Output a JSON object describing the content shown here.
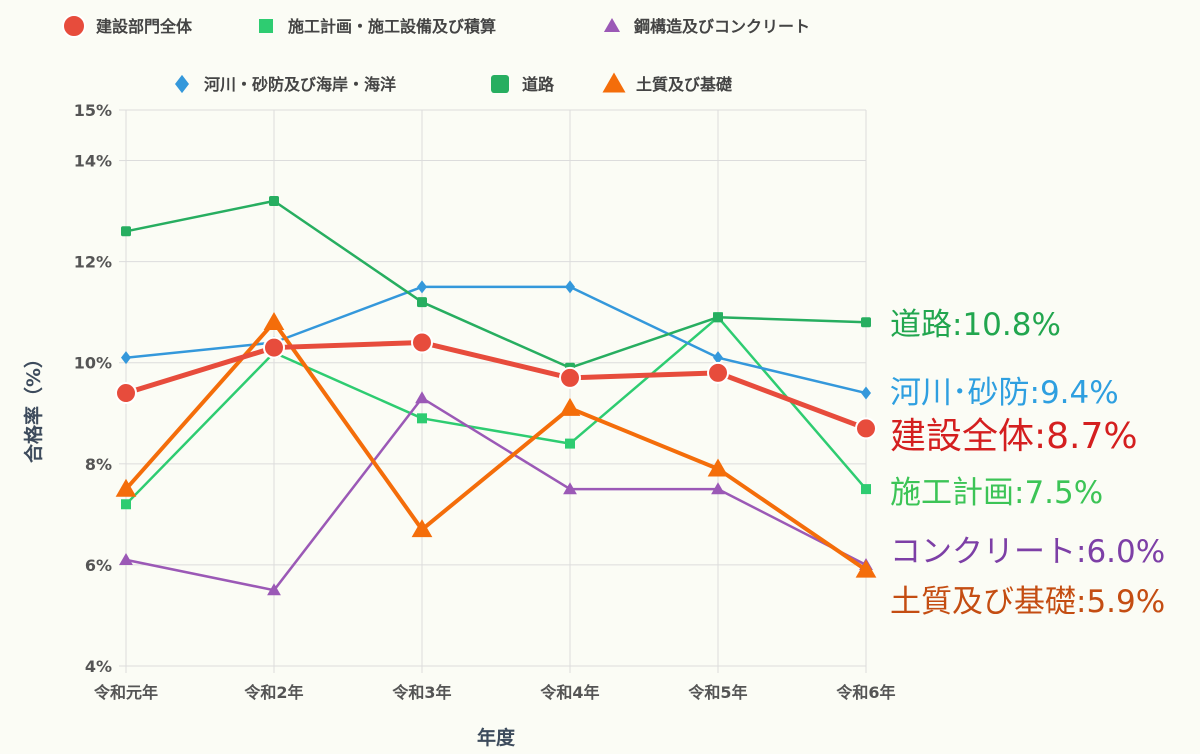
{
  "chart_data": {
    "type": "line",
    "categories": [
      "令和元年",
      "令和2年",
      "令和3年",
      "令和4年",
      "令和5年",
      "令和6年"
    ],
    "xlabel": "年度",
    "ylabel": "合格率（%）",
    "ylim": [
      4,
      15
    ],
    "yticks": [
      "4%",
      "6%",
      "8%",
      "10%",
      "12%",
      "14%",
      "15%"
    ],
    "ytick_values": [
      4,
      6,
      8,
      10,
      12,
      14,
      15
    ],
    "grid": true,
    "legend_position": "top",
    "series": [
      {
        "name": "建設部門全体",
        "color": "#e74c3c",
        "marker": "circle",
        "values": [
          9.4,
          10.3,
          10.4,
          9.7,
          9.8,
          8.7
        ],
        "end_label": "建設全体:8.7%",
        "end_label_color": "#d41f1f"
      },
      {
        "name": "施工計画・施工設備及び積算",
        "color": "#2ecc71",
        "marker": "square",
        "values": [
          7.2,
          10.2,
          8.9,
          8.4,
          10.9,
          7.5
        ],
        "end_label": "施工計画:7.5%",
        "end_label_color": "#3cc456"
      },
      {
        "name": "鋼構造及びコンクリート",
        "color": "#9b59b6",
        "marker": "triangle",
        "values": [
          6.1,
          5.5,
          9.3,
          7.5,
          7.5,
          6.0
        ],
        "end_label": "コンクリート:6.0%",
        "end_label_color": "#7d3fa6"
      },
      {
        "name": "河川・砂防及び海岸・海洋",
        "color": "#3498db",
        "marker": "diamond",
        "values": [
          10.1,
          10.4,
          11.5,
          11.5,
          10.1,
          9.4
        ],
        "end_label": "河川･砂防:9.4%",
        "end_label_color": "#2e9fe0"
      },
      {
        "name": "道路",
        "color": "#27ae60",
        "marker": "roundsquare",
        "values": [
          12.6,
          13.2,
          11.2,
          9.9,
          10.9,
          10.8
        ],
        "end_label": "道路:10.8%",
        "end_label_color": "#22a64f"
      },
      {
        "name": "土質及び基礎",
        "color": "#f46d0a",
        "marker": "triangle",
        "values": [
          7.5,
          10.8,
          6.7,
          9.1,
          7.9,
          5.9
        ],
        "end_label": "土質及び基礎:5.9%",
        "end_label_color": "#c44d12"
      }
    ]
  },
  "colors": {
    "grid": "#dcdcdc",
    "axis_line": "#999999",
    "background": "#fbfcf5"
  }
}
